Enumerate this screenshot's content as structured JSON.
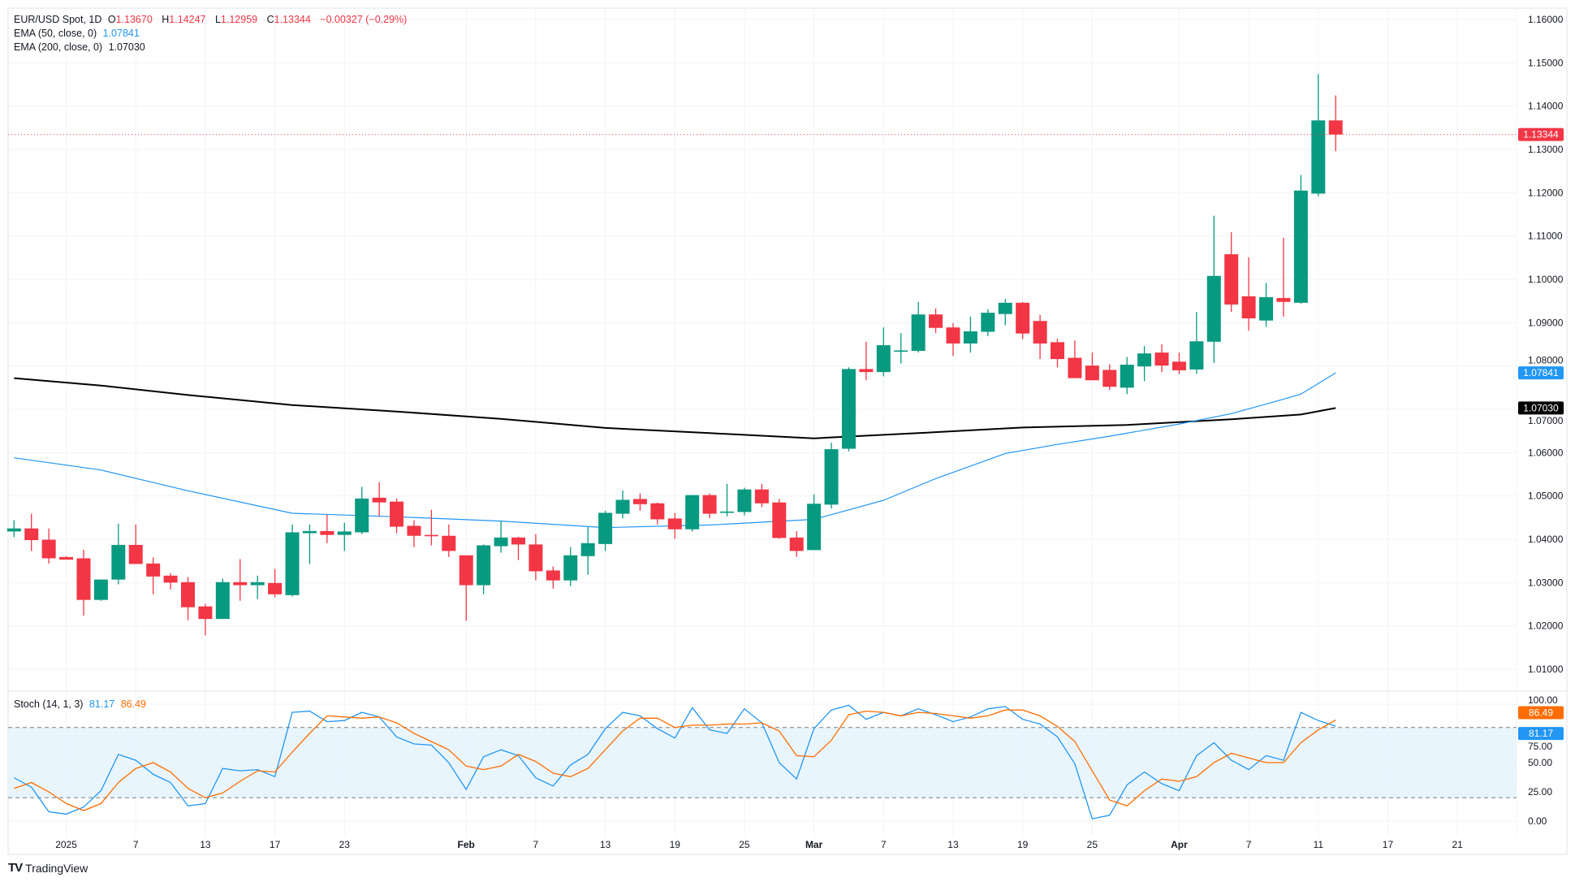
{
  "symbol": {
    "name": "EUR/USD Spot, 1D",
    "o_label": "O",
    "o": "1.13670",
    "h_label": "H",
    "h": "1.14247",
    "l_label": "L",
    "l": "1.12959",
    "c_label": "C",
    "c": "1.13344",
    "change": "−0.00327 (−0.29%)"
  },
  "ema50": {
    "label": "EMA (50, close, 0)",
    "value": "1.07841"
  },
  "ema200": {
    "label": "EMA (200, close, 0)",
    "value": "1.07030"
  },
  "stoch": {
    "label": "Stoch (14, 1, 3)",
    "k": "81.17",
    "d": "86.49"
  },
  "branding": {
    "logo_text": "TradingView"
  },
  "colors": {
    "up": "#089981",
    "down": "#f23645",
    "ema50": "#2196f3",
    "ema200": "#000000",
    "stoch_k": "#2196f3",
    "stoch_d": "#ff6d00",
    "stoch_band": "#e3f2fd"
  },
  "chart_data": [
    {
      "type": "candlestick",
      "title": "EUR/USD Spot, 1D",
      "ylim": [
        1.005,
        1.163
      ],
      "grid": true,
      "y_ticks": [
        "1.16000",
        "1.15000",
        "1.14000",
        "1.13000",
        "1.12000",
        "1.11000",
        "1.10000",
        "1.09000",
        "1.08000",
        "1.07000",
        "1.06000",
        "1.05000",
        "1.04000",
        "1.03000",
        "1.02000",
        "1.01000"
      ],
      "x_ticks": [
        "2025",
        "7",
        "13",
        "17",
        "23",
        "Feb",
        "7",
        "13",
        "19",
        "25",
        "Mar",
        "7",
        "13",
        "19",
        "25",
        "Apr",
        "7",
        "11",
        "17",
        "21"
      ],
      "last_price_label": "1.13344",
      "ema50_label": "1.07841",
      "ema200_label": "1.07030",
      "dates": [
        "2024-12-27",
        "2024-12-30",
        "2024-12-31",
        "2025-01-01",
        "2025-01-02",
        "2025-01-03",
        "2025-01-06",
        "2025-01-07",
        "2025-01-08",
        "2025-01-09",
        "2025-01-10",
        "2025-01-13",
        "2025-01-14",
        "2025-01-15",
        "2025-01-16",
        "2025-01-17",
        "2025-01-20",
        "2025-01-21",
        "2025-01-22",
        "2025-01-23",
        "2025-01-24",
        "2025-01-27",
        "2025-01-28",
        "2025-01-29",
        "2025-01-30",
        "2025-01-31",
        "2025-02-03",
        "2025-02-04",
        "2025-02-05",
        "2025-02-06",
        "2025-02-07",
        "2025-02-10",
        "2025-02-11",
        "2025-02-12",
        "2025-02-13",
        "2025-02-14",
        "2025-02-17",
        "2025-02-18",
        "2025-02-19",
        "2025-02-20",
        "2025-02-21",
        "2025-02-24",
        "2025-02-25",
        "2025-02-26",
        "2025-02-27",
        "2025-02-28",
        "2025-03-03",
        "2025-03-04",
        "2025-03-05",
        "2025-03-06",
        "2025-03-07",
        "2025-03-10",
        "2025-03-11",
        "2025-03-12",
        "2025-03-13",
        "2025-03-14",
        "2025-03-17",
        "2025-03-18",
        "2025-03-19",
        "2025-03-20",
        "2025-03-21",
        "2025-03-24",
        "2025-03-25",
        "2025-03-26",
        "2025-03-27",
        "2025-03-28",
        "2025-03-31",
        "2025-04-01",
        "2025-04-02",
        "2025-04-03",
        "2025-04-04",
        "2025-04-07",
        "2025-04-08",
        "2025-04-09",
        "2025-04-10",
        "2025-04-11",
        "2025-04-14"
      ],
      "ohlc": [
        [
          1.0418,
          1.0444,
          1.0405,
          1.0425
        ],
        [
          1.0425,
          1.0459,
          1.0373,
          1.0398
        ],
        [
          1.0399,
          1.0425,
          1.0344,
          1.0356
        ],
        [
          1.0359,
          1.0361,
          1.0353,
          1.0353
        ],
        [
          1.0356,
          1.0376,
          1.0224,
          1.026
        ],
        [
          1.026,
          1.0307,
          1.0258,
          1.0307
        ],
        [
          1.0307,
          1.0436,
          1.0296,
          1.0387
        ],
        [
          1.0387,
          1.0434,
          1.0343,
          1.0343
        ],
        [
          1.0344,
          1.0358,
          1.0273,
          1.0314
        ],
        [
          1.0316,
          1.0322,
          1.0284,
          1.03
        ],
        [
          1.0301,
          1.0313,
          1.0213,
          1.0243
        ],
        [
          1.0245,
          1.0251,
          1.0178,
          1.0216
        ],
        [
          1.0216,
          1.0309,
          1.0216,
          1.0301
        ],
        [
          1.0301,
          1.0354,
          1.0258,
          1.0294
        ],
        [
          1.0294,
          1.0316,
          1.0262,
          1.0301
        ],
        [
          1.0299,
          1.0331,
          1.0266,
          1.0273
        ],
        [
          1.0271,
          1.0434,
          1.0268,
          1.0416
        ],
        [
          1.0414,
          1.0434,
          1.0343,
          1.0419
        ],
        [
          1.0419,
          1.0457,
          1.0391,
          1.041
        ],
        [
          1.041,
          1.0438,
          1.0373,
          1.0418
        ],
        [
          1.0416,
          1.0521,
          1.0412,
          1.0494
        ],
        [
          1.0496,
          1.0532,
          1.0453,
          1.0485
        ],
        [
          1.0487,
          1.0494,
          1.0414,
          1.0429
        ],
        [
          1.0431,
          1.0444,
          1.0382,
          1.0408
        ],
        [
          1.041,
          1.0468,
          1.0386,
          1.0407
        ],
        [
          1.0408,
          1.0434,
          1.0359,
          1.0373
        ],
        [
          1.0363,
          1.0363,
          1.0212,
          1.0294
        ],
        [
          1.0294,
          1.0388,
          1.0273,
          1.0386
        ],
        [
          1.0384,
          1.0442,
          1.0369,
          1.0404
        ],
        [
          1.0404,
          1.0406,
          1.0352,
          1.0388
        ],
        [
          1.0388,
          1.0412,
          1.0305,
          1.0326
        ],
        [
          1.0328,
          1.0337,
          1.0286,
          1.0305
        ],
        [
          1.0305,
          1.0382,
          1.0292,
          1.0363
        ],
        [
          1.0361,
          1.0429,
          1.0318,
          1.0391
        ],
        [
          1.0389,
          1.0466,
          1.0373,
          1.0461
        ],
        [
          1.0459,
          1.0513,
          1.0448,
          1.0491
        ],
        [
          1.0493,
          1.0506,
          1.0466,
          1.0481
        ],
        [
          1.0483,
          1.0485,
          1.0434,
          1.0446
        ],
        [
          1.0448,
          1.0461,
          1.0401,
          1.0423
        ],
        [
          1.0423,
          1.0502,
          1.0418,
          1.0502
        ],
        [
          1.0502,
          1.0506,
          1.0449,
          1.0459
        ],
        [
          1.0461,
          1.0528,
          1.0453,
          1.0464
        ],
        [
          1.0463,
          1.0519,
          1.0455,
          1.0515
        ],
        [
          1.0515,
          1.0528,
          1.0474,
          1.0483
        ],
        [
          1.0485,
          1.0493,
          1.0401,
          1.0403
        ],
        [
          1.0404,
          1.0419,
          1.0359,
          1.0373
        ],
        [
          1.0375,
          1.0504,
          1.0375,
          1.0482
        ],
        [
          1.048,
          1.0623,
          1.0471,
          1.0608
        ],
        [
          1.0609,
          1.0797,
          1.0603,
          1.0793
        ],
        [
          1.0793,
          1.0856,
          1.0767,
          1.0786
        ],
        [
          1.0786,
          1.0889,
          1.0776,
          1.0848
        ],
        [
          1.0833,
          1.0876,
          1.0806,
          1.0836
        ],
        [
          1.0835,
          1.0948,
          1.0831,
          1.0919
        ],
        [
          1.0919,
          1.0933,
          1.0876,
          1.0888
        ],
        [
          1.0889,
          1.0899,
          1.0823,
          1.0852
        ],
        [
          1.0852,
          1.0914,
          1.0831,
          1.088
        ],
        [
          1.0879,
          1.0931,
          1.0869,
          1.0923
        ],
        [
          1.092,
          1.0955,
          1.0894,
          1.0946
        ],
        [
          1.0946,
          1.0948,
          1.0862,
          1.0875
        ],
        [
          1.0904,
          1.0918,
          1.0816,
          1.0852
        ],
        [
          1.0855,
          1.0863,
          1.0797,
          1.0816
        ],
        [
          1.0819,
          1.0859,
          1.0772,
          1.0772
        ],
        [
          1.0801,
          1.0831,
          1.0767,
          1.0767
        ],
        [
          1.0791,
          1.0804,
          1.0745,
          1.0752
        ],
        [
          1.075,
          1.0821,
          1.0735,
          1.0803
        ],
        [
          1.0799,
          1.0846,
          1.0765,
          1.0829
        ],
        [
          1.0831,
          1.085,
          1.0786,
          1.0801
        ],
        [
          1.081,
          1.0831,
          1.0781,
          1.079
        ],
        [
          1.0792,
          1.0925,
          1.0782,
          1.0857
        ],
        [
          1.0856,
          1.1147,
          1.0807,
          1.1008
        ],
        [
          1.1058,
          1.1109,
          1.0925,
          1.0942
        ],
        [
          1.0961,
          1.1051,
          1.0882,
          1.091
        ],
        [
          1.0905,
          1.0992,
          1.089,
          1.0959
        ],
        [
          1.0957,
          1.1096,
          1.0914,
          1.0948
        ],
        [
          1.0946,
          1.1241,
          1.0944,
          1.1205
        ],
        [
          1.1198,
          1.1474,
          1.1192,
          1.1367
        ],
        [
          1.1367,
          1.14247,
          1.12959,
          1.13344
        ]
      ],
      "ema50_points": [
        [
          "2024-12-27",
          1.0588
        ],
        [
          "2025-01-03",
          1.056
        ],
        [
          "2025-01-10",
          1.0512
        ],
        [
          "2025-01-20",
          1.046
        ],
        [
          "2025-01-28",
          1.0452
        ],
        [
          "2025-02-05",
          1.0442
        ],
        [
          "2025-02-13",
          1.0427
        ],
        [
          "2025-02-21",
          1.0433
        ],
        [
          "2025-03-03",
          1.0446
        ],
        [
          "2025-03-07",
          1.049
        ],
        [
          "2025-03-12",
          1.054
        ],
        [
          "2025-03-18",
          1.0598
        ],
        [
          "2025-03-21",
          1.0619
        ],
        [
          "2025-03-26",
          1.0638
        ],
        [
          "2025-04-01",
          1.0666
        ],
        [
          "2025-04-04",
          1.069
        ],
        [
          "2025-04-08",
          1.0712
        ],
        [
          "2025-04-10",
          1.0735
        ],
        [
          "2025-04-14",
          1.07841
        ]
      ],
      "ema200_points": [
        [
          "2024-12-27",
          1.0772
        ],
        [
          "2025-01-03",
          1.0755
        ],
        [
          "2025-01-10",
          1.0733
        ],
        [
          "2025-01-20",
          1.071
        ],
        [
          "2025-01-28",
          1.0695
        ],
        [
          "2025-02-05",
          1.0678
        ],
        [
          "2025-02-13",
          1.0657
        ],
        [
          "2025-02-21",
          1.0645
        ],
        [
          "2025-03-03",
          1.0633
        ],
        [
          "2025-03-11",
          1.0645
        ],
        [
          "2025-03-19",
          1.0658
        ],
        [
          "2025-03-27",
          1.0664
        ],
        [
          "2025-04-04",
          1.0677
        ],
        [
          "2025-04-10",
          1.0688
        ],
        [
          "2025-04-14",
          1.0703
        ]
      ]
    },
    {
      "type": "line",
      "title": "Stoch (14, 1, 3)",
      "ylim": [
        0,
        100
      ],
      "y_ticks": [
        "100.00",
        "75.00",
        "50.00",
        "25.00",
        "0.00"
      ],
      "bands": [
        20,
        80
      ],
      "series": [
        {
          "name": "81.17",
          "values": [
            37,
            29,
            8,
            6,
            12,
            26,
            57,
            52,
            40,
            33,
            13,
            15,
            45,
            43,
            44,
            38,
            93,
            94,
            85,
            86,
            93,
            89,
            72,
            66,
            65,
            50,
            27,
            55,
            61,
            56,
            37,
            30,
            48,
            57,
            79,
            93,
            90,
            79,
            71,
            97,
            78,
            75,
            96,
            84,
            50,
            36,
            79,
            95,
            99,
            87,
            93,
            90,
            96,
            91,
            85,
            89,
            96,
            98,
            87,
            83,
            72,
            49,
            2,
            5,
            31,
            42,
            32,
            26,
            56,
            67,
            52,
            44,
            56,
            52,
            93,
            86,
            81.17
          ]
        },
        {
          "name": "86.49",
          "values": [
            28,
            33,
            25,
            15,
            9,
            15,
            33,
            45,
            50,
            42,
            28,
            20,
            24,
            34,
            43,
            42,
            59,
            75,
            90,
            89,
            88,
            89,
            84,
            75,
            68,
            61,
            47,
            44,
            47,
            57,
            51,
            41,
            38,
            45,
            61,
            77,
            88,
            88,
            80,
            82,
            82,
            83,
            83,
            84,
            77,
            56,
            55,
            69,
            91,
            94,
            93,
            90,
            93,
            92,
            90,
            88,
            90,
            95,
            95,
            90,
            81,
            68,
            43,
            18,
            13,
            26,
            36,
            34,
            38,
            50,
            58,
            54,
            50,
            50,
            67,
            78,
            86.49
          ]
        }
      ]
    }
  ]
}
